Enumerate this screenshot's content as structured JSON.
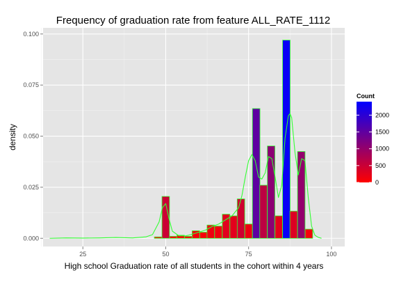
{
  "chart_data": {
    "type": "bar",
    "title": "Frequency of graduation rate from feature ALL_RATE_1112",
    "xlabel": "High school Graduation rate of all students in the cohort within 4 years",
    "ylabel": "density",
    "xlim": [
      13,
      104
    ],
    "ylim": [
      -0.004,
      0.103
    ],
    "x_ticks": [
      {
        "value": 25,
        "label": "25"
      },
      {
        "value": 50,
        "label": "50"
      },
      {
        "value": 75,
        "label": "75"
      },
      {
        "value": 100,
        "label": "100"
      }
    ],
    "y_ticks": [
      {
        "value": 0,
        "label": "0.000"
      },
      {
        "value": 0.025,
        "label": "0.025"
      },
      {
        "value": 0.05,
        "label": "0.050"
      },
      {
        "value": 0.075,
        "label": "0.075"
      },
      {
        "value": 0.1,
        "label": "0.100"
      }
    ],
    "x_minor": [
      12.5,
      37.5,
      62.5,
      87.5
    ],
    "y_minor": [
      0.0125,
      0.0375,
      0.0625,
      0.0875
    ],
    "grid": true,
    "bin_width": 2.27,
    "bar_outline_color": "#33ff33",
    "density_curve_color": "#33ff33",
    "bins": [
      {
        "x": 47.7,
        "density": 0.0007,
        "count": 17
      },
      {
        "x": 50.0,
        "density": 0.0205,
        "count": 490
      },
      {
        "x": 52.3,
        "density": 0.001,
        "count": 24
      },
      {
        "x": 54.5,
        "density": 0.0015,
        "count": 36
      },
      {
        "x": 56.8,
        "density": 0.001,
        "count": 24
      },
      {
        "x": 59.1,
        "density": 0.0037,
        "count": 88
      },
      {
        "x": 61.4,
        "density": 0.003,
        "count": 72
      },
      {
        "x": 63.6,
        "density": 0.0065,
        "count": 155
      },
      {
        "x": 65.9,
        "density": 0.006,
        "count": 143
      },
      {
        "x": 68.2,
        "density": 0.0118,
        "count": 282
      },
      {
        "x": 70.5,
        "density": 0.011,
        "count": 263
      },
      {
        "x": 72.7,
        "density": 0.0193,
        "count": 461
      },
      {
        "x": 75.0,
        "density": 0.007,
        "count": 167
      },
      {
        "x": 77.3,
        "density": 0.0635,
        "count": 1517
      },
      {
        "x": 79.5,
        "density": 0.026,
        "count": 621
      },
      {
        "x": 81.8,
        "density": 0.0452,
        "count": 1080
      },
      {
        "x": 84.1,
        "density": 0.011,
        "count": 263
      },
      {
        "x": 86.4,
        "density": 0.097,
        "count": 2318
      },
      {
        "x": 88.6,
        "density": 0.0133,
        "count": 318
      },
      {
        "x": 90.9,
        "density": 0.0425,
        "count": 1016
      },
      {
        "x": 93.2,
        "density": 0.0045,
        "count": 108
      }
    ],
    "density_curve": {
      "x": [
        15,
        20,
        25,
        30,
        35,
        40,
        44,
        46,
        48,
        49,
        50,
        51,
        52,
        54,
        56,
        58,
        60,
        62,
        64,
        66,
        68,
        70,
        71,
        72,
        73,
        74,
        75,
        76,
        77,
        78,
        79,
        80,
        81,
        82,
        83,
        84,
        85,
        86,
        87,
        87.5,
        88,
        89,
        90,
        91,
        92,
        93,
        94,
        95,
        96,
        97
      ],
      "y": [
        0.0,
        0.0002,
        0.0001,
        0.0002,
        0.0004,
        0.0002,
        0.0007,
        0.0018,
        0.008,
        0.015,
        0.017,
        0.0095,
        0.0035,
        0.0012,
        0.0012,
        0.002,
        0.003,
        0.004,
        0.0058,
        0.007,
        0.009,
        0.011,
        0.013,
        0.015,
        0.021,
        0.03,
        0.038,
        0.041,
        0.038,
        0.03,
        0.029,
        0.032,
        0.04,
        0.039,
        0.03,
        0.02,
        0.026,
        0.049,
        0.06,
        0.061,
        0.059,
        0.042,
        0.031,
        0.039,
        0.038,
        0.02,
        0.006,
        0.0015,
        0.0005,
        0.0
      ]
    },
    "legend": {
      "title": "Count",
      "placement": "right",
      "range": [
        0,
        2400
      ],
      "color_low": "#ff0000",
      "color_high": "#0000ff",
      "breaks": [
        {
          "value": 0,
          "label": "0"
        },
        {
          "value": 500,
          "label": "500"
        },
        {
          "value": 1000,
          "label": "1000"
        },
        {
          "value": 1500,
          "label": "1500"
        },
        {
          "value": 2000,
          "label": "2000"
        }
      ]
    },
    "panel_background": "#e5e5e5",
    "grid_color": "#ffffff"
  }
}
